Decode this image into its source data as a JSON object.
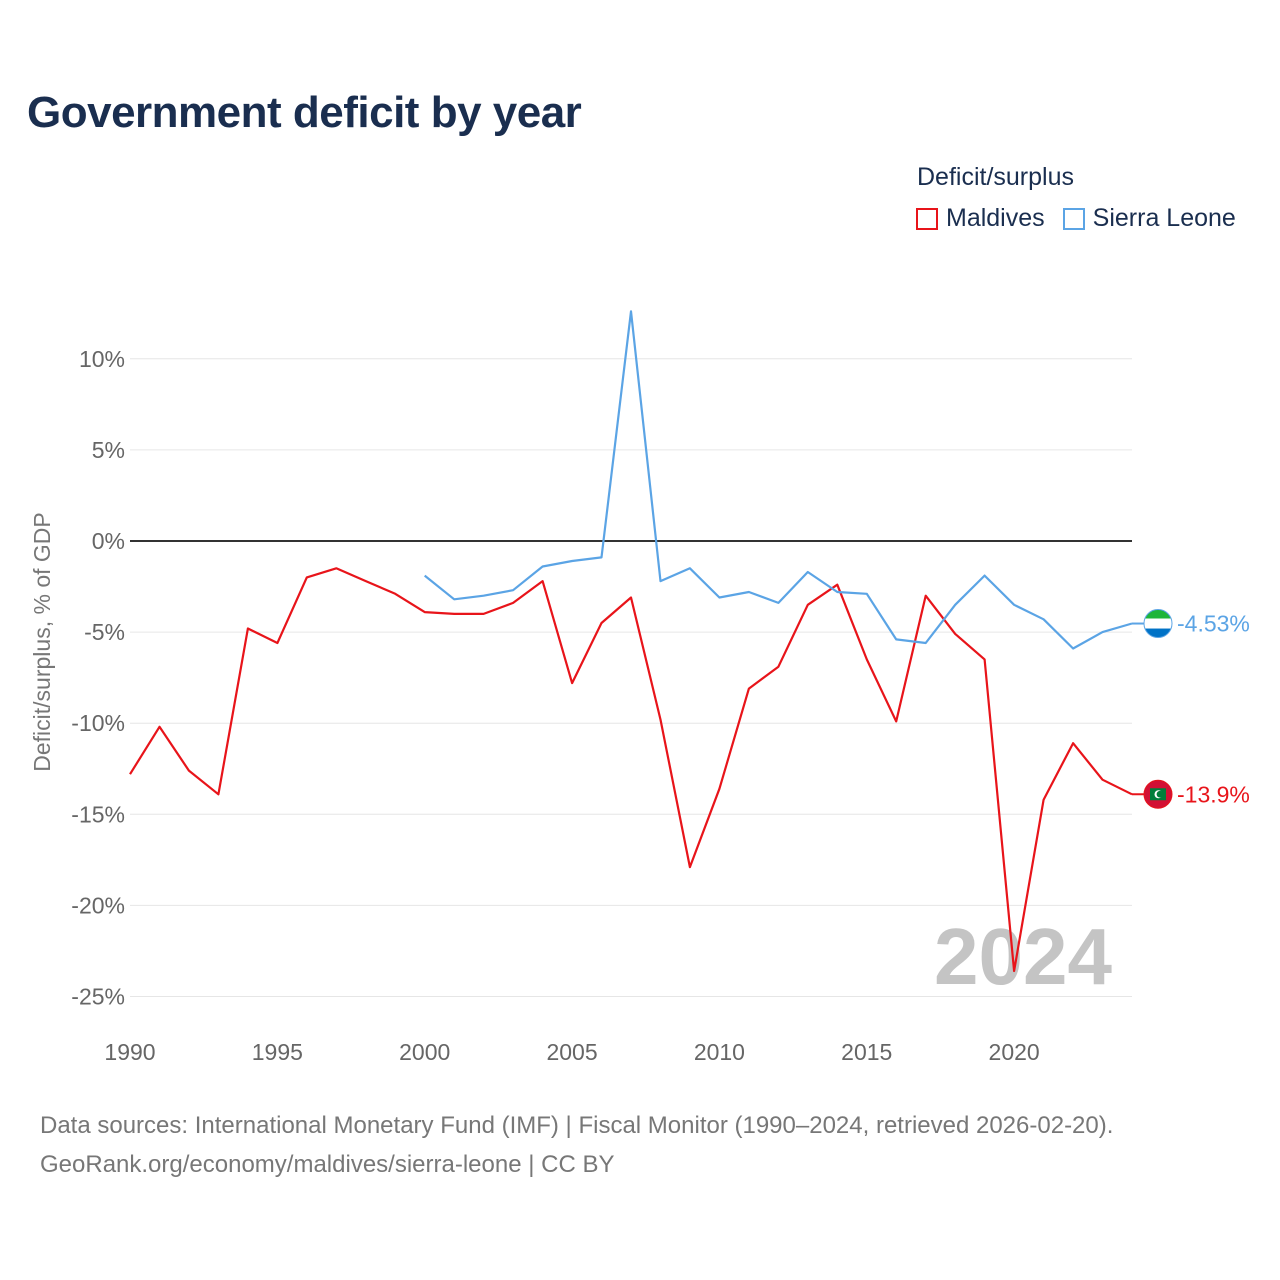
{
  "title": "Government deficit by year",
  "legend": {
    "title": "Deficit/surplus",
    "items": [
      {
        "name": "Maldives",
        "color": "#e8141a"
      },
      {
        "name": "Sierra Leone",
        "color": "#5ba4e5"
      }
    ]
  },
  "source": {
    "line1": "Data sources: International Monetary Fund (IMF) | Fiscal Monitor (1990–2024, retrieved 2026-02-20).",
    "line2": "GeoRank.org/economy/maldives/sierra-leone | CC BY"
  },
  "chart_data": {
    "type": "line",
    "title": "Government deficit by year",
    "xlabel": "",
    "ylabel": "Deficit/surplus, % of GDP",
    "xlim": [
      1990,
      2024
    ],
    "ylim": [
      -25,
      12
    ],
    "x_ticks": [
      1990,
      1995,
      2000,
      2005,
      2010,
      2015,
      2020
    ],
    "y_ticks": [
      10,
      5,
      0,
      -5,
      -10,
      -15,
      -20,
      -25
    ],
    "y_tick_labels": [
      "10%",
      "5%",
      "0%",
      "-5%",
      "-10%",
      "-15%",
      "-20%",
      "-25%"
    ],
    "current_year": "2024",
    "series": [
      {
        "name": "Maldives",
        "color": "#e8141a",
        "end_label": "-13.9%",
        "flag_icon": "maldives-flag-icon",
        "x": [
          1990,
          1991,
          1992,
          1993,
          1994,
          1995,
          1996,
          1997,
          1998,
          1999,
          2000,
          2001,
          2002,
          2003,
          2004,
          2005,
          2006,
          2007,
          2008,
          2009,
          2010,
          2011,
          2012,
          2013,
          2014,
          2015,
          2016,
          2017,
          2018,
          2019,
          2020,
          2021,
          2022,
          2023,
          2024
        ],
        "values": [
          -12.8,
          -10.2,
          -12.6,
          -13.9,
          -4.8,
          -5.6,
          -2.0,
          -1.5,
          -2.2,
          -2.9,
          -3.9,
          -4.0,
          -4.0,
          -3.4,
          -2.2,
          -7.8,
          -4.5,
          -3.1,
          -9.8,
          -17.9,
          -13.6,
          -8.1,
          -6.9,
          -3.5,
          -2.4,
          -6.5,
          -9.9,
          -3.0,
          -5.1,
          -6.5,
          -23.6,
          -14.2,
          -11.1,
          -13.1,
          -13.9
        ]
      },
      {
        "name": "Sierra Leone",
        "color": "#5ba4e5",
        "end_label": "-4.53%",
        "flag_icon": "sierra-leone-flag-icon",
        "x": [
          2000,
          2001,
          2002,
          2003,
          2004,
          2005,
          2006,
          2007,
          2008,
          2009,
          2010,
          2011,
          2012,
          2013,
          2014,
          2015,
          2016,
          2017,
          2018,
          2019,
          2020,
          2021,
          2022,
          2023,
          2024
        ],
        "values": [
          -1.9,
          -3.2,
          -3.0,
          -2.7,
          -1.4,
          -1.1,
          -0.9,
          12.6,
          -2.2,
          -1.5,
          -3.1,
          -2.8,
          -3.4,
          -1.7,
          -2.8,
          -2.9,
          -5.4,
          -5.6,
          -3.5,
          -1.9,
          -3.5,
          -4.3,
          -5.9,
          -5.0,
          -4.53
        ]
      }
    ]
  }
}
